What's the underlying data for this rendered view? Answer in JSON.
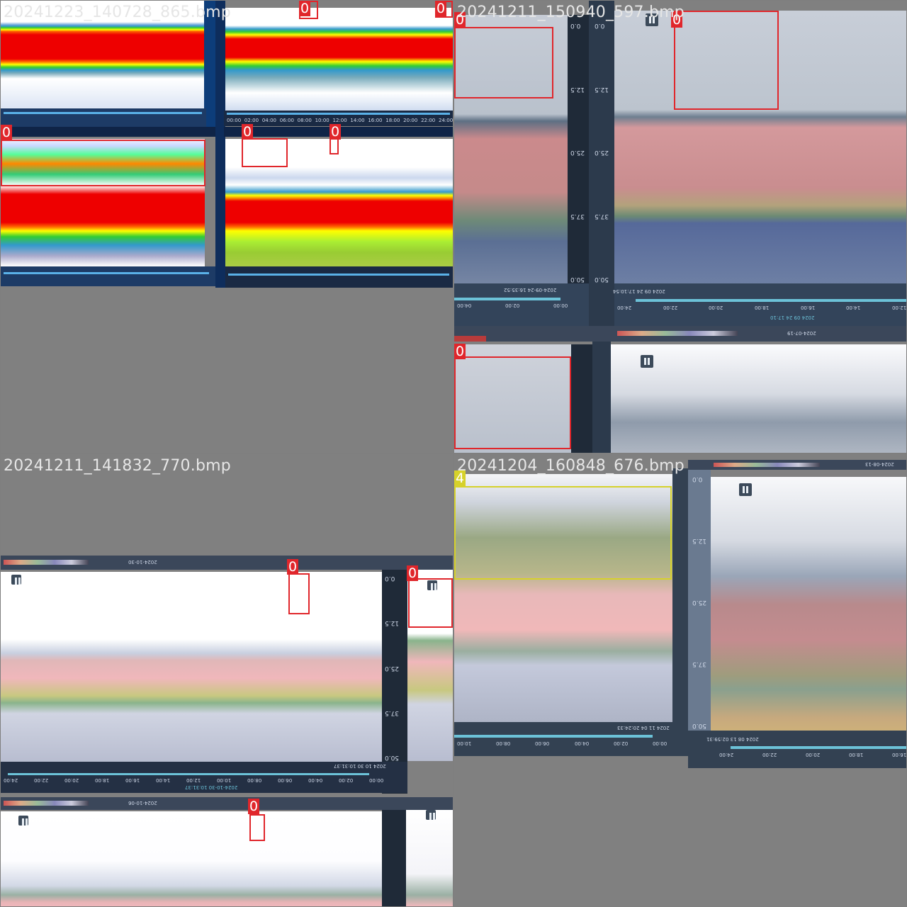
{
  "tiles": [
    {
      "filename": "20241223_140728_865.bmp"
    },
    {
      "filename": "20241211_150940_597.bmp"
    },
    {
      "filename": "20241211_141832_770.bmp"
    },
    {
      "filename": "20241204_160848_676.bmp"
    }
  ],
  "labels": {
    "zero": "0",
    "four": "4"
  },
  "colors": {
    "box_class0": "#e0262b",
    "box_class4": "#d6d12a",
    "background": "#7f7f7f"
  },
  "q2": {
    "depth_ticks": [
      "0.0",
      "12.5",
      "25.0",
      "37.5",
      "50.0"
    ],
    "time_ticks_top": [
      "24:00",
      "22:00",
      "20:00",
      "18:00",
      "16:00",
      "14:00",
      "12:00"
    ],
    "time_ticks_left": [
      "04:00",
      "02:00",
      "00:00"
    ],
    "stamp_a": "2024-09-24 16:35:52",
    "stamp_b": "2024 09 24 17:10:54",
    "stamp_c": "2024 09 24 17:10",
    "header_date": "2024-07-19"
  },
  "q3": {
    "depth_ticks": [
      "0.0",
      "12.5",
      "25.0",
      "37.5",
      "50.0"
    ],
    "time_ticks": [
      "24:00",
      "22:00",
      "20:00",
      "18:00",
      "16:00",
      "14:00",
      "12:00",
      "10:00",
      "08:00",
      "06:00",
      "04:00",
      "02:00",
      "00:00"
    ],
    "stamp_a": "2024 10 30 10:31:37",
    "stamp_b": "2024-10-30 10:31:37",
    "header_date": "2024-10-30",
    "header_date_b": "2024-10-06"
  },
  "q4": {
    "depth_ticks": [
      "0.0",
      "12.5",
      "25.0",
      "37.5",
      "50.0"
    ],
    "time_ticks_left": [
      "10:00",
      "08:00",
      "06:00",
      "04:00",
      "02:00",
      "00:00"
    ],
    "time_ticks_right": [
      "24:00",
      "22:00",
      "20:00",
      "18:00",
      "16:00"
    ],
    "stamp_a": "2024 11 04 20:24:33",
    "stamp_b": "2024 08 13 02:59:31",
    "header_date": "2024-08-13"
  },
  "q1": {
    "time_ticks": [
      "00:00",
      "02:00",
      "04:00",
      "06:00",
      "08:00",
      "10:00",
      "12:00",
      "14:00",
      "16:00",
      "18:00",
      "20:00",
      "22:00",
      "24:00"
    ]
  }
}
